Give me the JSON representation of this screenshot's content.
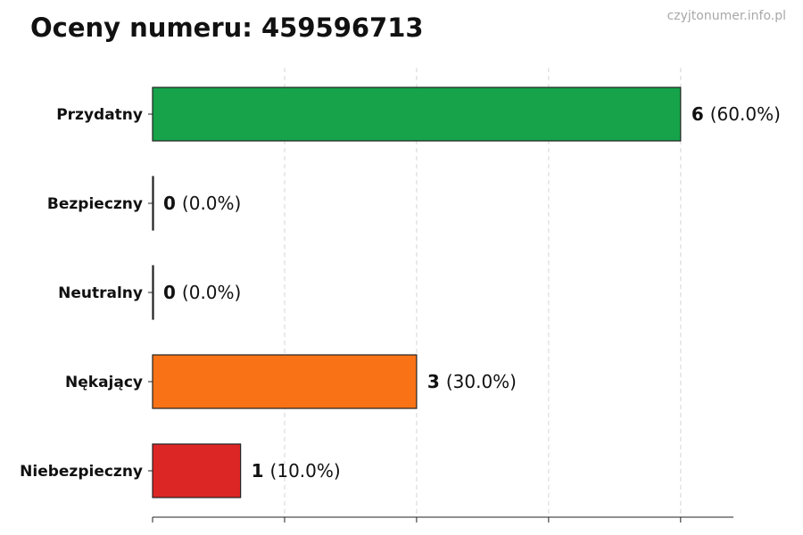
{
  "chart_data": {
    "type": "bar",
    "orientation": "horizontal",
    "title": "Oceny numeru: 459596713",
    "watermark": "czyjtonumer.info.pl",
    "categories": [
      "Przydatny",
      "Bezpieczny",
      "Neutralny",
      "Nękający",
      "Niebezpieczny"
    ],
    "values": [
      6,
      0,
      0,
      3,
      1
    ],
    "value_labels": [
      "6",
      "0",
      "0",
      "3",
      "1"
    ],
    "percent_labels": [
      "(60.0%)",
      "(0.0%)",
      "(0.0%)",
      "(30.0%)",
      "(10.0%)"
    ],
    "colors": [
      "#16a34a",
      "#16a34a",
      "#9ca3af",
      "#f97316",
      "#dc2626"
    ],
    "xlim": [
      0,
      6.6
    ],
    "grid": true,
    "xlabel": "",
    "ylabel": ""
  }
}
